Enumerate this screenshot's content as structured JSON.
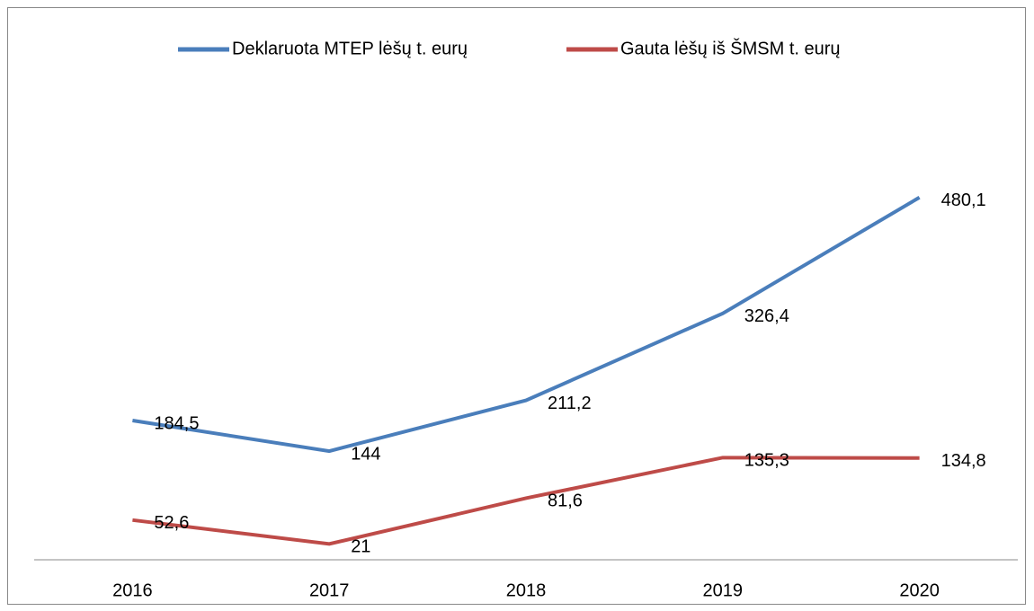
{
  "chart_data": {
    "type": "line",
    "categories": [
      "2016",
      "2017",
      "2018",
      "2019",
      "2020"
    ],
    "series": [
      {
        "name": "Deklaruota MTEP lėšų t. eurų",
        "color": "#4a7ebb",
        "values": [
          184.5,
          144,
          211.2,
          326.4,
          480.1
        ],
        "value_labels": [
          "184,5",
          "144",
          "211,2",
          "326,4",
          "480,1"
        ]
      },
      {
        "name": "Gauta lėšų iš ŠMSM t. eurų",
        "color": "#be4b48",
        "values": [
          52.6,
          21,
          81.6,
          135.3,
          134.8
        ],
        "value_labels": [
          "52,6",
          "21",
          "81,6",
          "135,3",
          "134,8"
        ]
      }
    ],
    "ylim": [
      0,
      600
    ],
    "grid": false,
    "legend": "top"
  }
}
